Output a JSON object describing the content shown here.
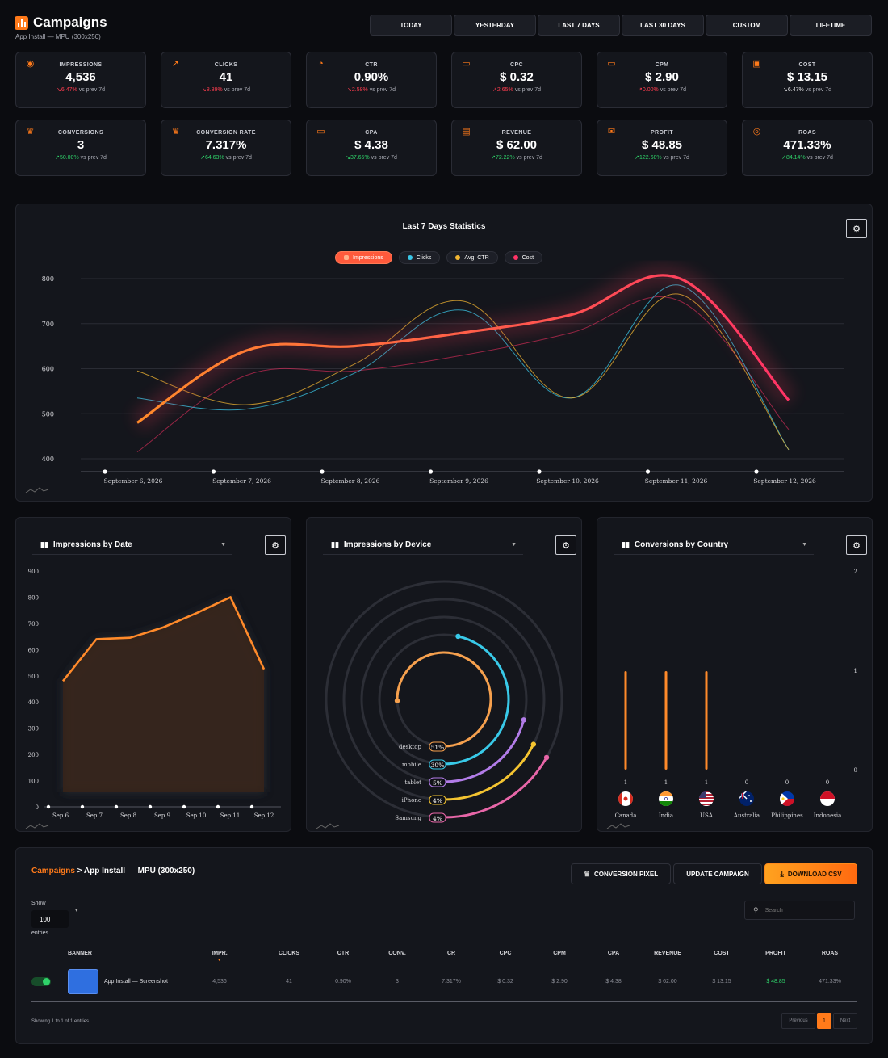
{
  "header": {
    "title": "Campaigns",
    "subtitle": "App Install — MPU (300x250)"
  },
  "ranges": [
    "TODAY",
    "YESTERDAY",
    "LAST 7 DAYS",
    "LAST 30 DAYS",
    "CUSTOM",
    "LIFETIME"
  ],
  "kpis": [
    {
      "label": "IMPRESSIONS",
      "value": "4,536",
      "change": "6.47%",
      "dir": "down",
      "icon": "eye-icon",
      "suffix": "vs prev 7d"
    },
    {
      "label": "CLICKS",
      "value": "41",
      "change": "8.89%",
      "dir": "down",
      "icon": "cursor-click-icon",
      "suffix": "vs prev 7d"
    },
    {
      "label": "CTR",
      "value": "0.90%",
      "change": "2.58%",
      "dir": "down",
      "icon": "pie-chart-icon",
      "suffix": "vs prev 7d"
    },
    {
      "label": "CPC",
      "value": "$ 0.32",
      "change": "2.65%",
      "dir": "up-red",
      "icon": "money-icon",
      "suffix": "vs prev 7d"
    },
    {
      "label": "CPM",
      "value": "$ 2.90",
      "change": "0.00%",
      "dir": "up-red",
      "icon": "money-icon",
      "suffix": "vs prev 7d"
    },
    {
      "label": "COST",
      "value": "$ 13.15",
      "change": "6.47%",
      "dir": "down-neutral",
      "icon": "wallet-icon",
      "suffix": "vs prev 7d"
    },
    {
      "label": "CONVERSIONS",
      "value": "3",
      "change": "50.00%",
      "dir": "up",
      "icon": "trophy-icon",
      "suffix": "vs prev 7d"
    },
    {
      "label": "CONVERSION RATE",
      "value": "7.317%",
      "change": "64.63%",
      "dir": "up",
      "icon": "trophy-icon",
      "suffix": "vs prev 7d"
    },
    {
      "label": "CPA",
      "value": "$ 4.38",
      "change": "37.65%",
      "dir": "down-green",
      "icon": "money-icon",
      "suffix": "vs prev 7d"
    },
    {
      "label": "REVENUE",
      "value": "$ 62.00",
      "change": "72.22%",
      "dir": "up",
      "icon": "cash-icon",
      "suffix": "vs prev 7d"
    },
    {
      "label": "PROFIT",
      "value": "$ 48.85",
      "change": "122.68%",
      "dir": "up",
      "icon": "moneybag-icon",
      "suffix": "vs prev 7d"
    },
    {
      "label": "ROAS",
      "value": "471.33%",
      "change": "84.14%",
      "dir": "up",
      "icon": "target-icon",
      "suffix": "vs prev 7d"
    }
  ],
  "colors": {
    "accent": "#ff7a1a",
    "impressions": "#ff6a3d",
    "clicks": "#3ac6e6",
    "ctr": "#f2b632",
    "cost": "#ff3366",
    "up": "#2fd36a",
    "down": "#ff3d4f"
  },
  "chart_data": [
    {
      "type": "line",
      "title": "Last 7 Days Statistics",
      "x": [
        "September 6, 2026",
        "September 7, 2026",
        "September 8, 2026",
        "September 9, 2026",
        "September 10, 2026",
        "September 11, 2026",
        "September 12, 2026"
      ],
      "yticks": [
        800,
        700,
        600,
        500,
        400
      ],
      "ylim": [
        400,
        800
      ],
      "legend_position": "top-center",
      "series": [
        {
          "name": "Impressions",
          "values": [
            480,
            640,
            650,
            680,
            720,
            800,
            530
          ]
        },
        {
          "name": "Clicks",
          "values": [
            535,
            510,
            590,
            730,
            535,
            785,
            420
          ]
        },
        {
          "name": "Avg. CTR",
          "values": [
            595,
            520,
            610,
            750,
            535,
            765,
            420
          ]
        },
        {
          "name": "Cost",
          "values": [
            415,
            585,
            595,
            630,
            680,
            750,
            465
          ]
        }
      ]
    },
    {
      "type": "area",
      "title": "Impressions by Date",
      "categories": [
        "Sep 6",
        "Sep 7",
        "Sep 8",
        "Sep 9",
        "Sep 10",
        "Sep 11",
        "Sep 12"
      ],
      "values": [
        480,
        640,
        645,
        685,
        740,
        800,
        525
      ],
      "yticks": [
        900,
        800,
        700,
        600,
        500,
        400,
        300,
        200,
        100,
        0
      ],
      "ylim": [
        0,
        900
      ]
    },
    {
      "type": "pie",
      "title": "Impressions by Device",
      "categories": [
        "desktop",
        "mobile",
        "tablet",
        "iPhone",
        "Samsung"
      ],
      "labels": [
        "51%",
        "30%",
        "5%",
        "4%",
        "4%"
      ],
      "values": [
        51,
        30,
        5,
        4,
        4
      ],
      "colors": [
        "#f6a04d",
        "#38c9e8",
        "#b27ce8",
        "#f4c430",
        "#e866a8"
      ]
    },
    {
      "type": "bar",
      "title": "Conversions by Country",
      "categories": [
        "Canada",
        "India",
        "USA",
        "Australia",
        "Philippines",
        "Indonesia"
      ],
      "values": [
        1,
        1,
        1,
        0,
        0,
        0
      ],
      "yticks": [
        2,
        1,
        0
      ],
      "ylim": [
        0,
        2
      ]
    }
  ],
  "charts": {
    "dd_impressions_by_date": "Impressions by Date",
    "dd_device": "Impressions by Device",
    "dd_country": "Conversions by Country"
  },
  "table": {
    "breadcrumb_root": "Campaigns",
    "breadcrumb_rest": "> App Install — MPU (300x250)",
    "buttons": {
      "pixel": "CONVERSION PIXEL",
      "update": "UPDATE CAMPAIGN",
      "csv": "DOWNLOAD CSV"
    },
    "show_label": "Show",
    "show_value": "100",
    "entries_label": "entries",
    "search_placeholder": "Search",
    "columns": [
      "BANNER",
      "IMPR.",
      "CLICKS",
      "CTR",
      "CONV.",
      "CR",
      "CPC",
      "CPM",
      "CPA",
      "REVENUE",
      "COST",
      "PROFIT",
      "ROAS"
    ],
    "rows": [
      [
        "App Install — Screenshot",
        "4,536",
        "41",
        "0.90%",
        "3",
        "7.317%",
        "$ 0.32",
        "$ 2.90",
        "$ 4.38",
        "$ 62.00",
        "$ 13.15",
        "$ 48.85",
        "471.33%"
      ]
    ],
    "footer": "Showing 1 to 1 of 1 entries",
    "pager": {
      "prev": "Previous",
      "page": "1",
      "next": "Next"
    }
  }
}
